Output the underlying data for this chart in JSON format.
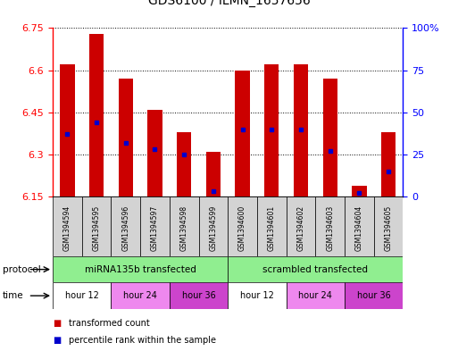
{
  "title": "GDS6100 / ILMN_1657656",
  "samples": [
    "GSM1394594",
    "GSM1394595",
    "GSM1394596",
    "GSM1394597",
    "GSM1394598",
    "GSM1394599",
    "GSM1394600",
    "GSM1394601",
    "GSM1394602",
    "GSM1394603",
    "GSM1394604",
    "GSM1394605"
  ],
  "transformed_count": [
    6.62,
    6.73,
    6.57,
    6.46,
    6.38,
    6.31,
    6.6,
    6.62,
    6.62,
    6.57,
    6.19,
    6.38
  ],
  "percentile_rank": [
    37,
    44,
    32,
    28,
    25,
    3,
    40,
    40,
    40,
    27,
    2,
    15
  ],
  "ylim_left": [
    6.15,
    6.75
  ],
  "ylim_right": [
    0,
    100
  ],
  "yticks_left": [
    6.15,
    6.3,
    6.45,
    6.6,
    6.75
  ],
  "yticks_right": [
    0,
    25,
    50,
    75,
    100
  ],
  "bar_color": "#cc0000",
  "dot_color": "#0000cc",
  "bar_bottom": 6.15,
  "protocol_groups": [
    {
      "label": "miRNA135b transfected",
      "start": 0,
      "end": 6,
      "color": "#90ee90"
    },
    {
      "label": "scrambled transfected",
      "start": 6,
      "end": 12,
      "color": "#90ee90"
    }
  ],
  "time_groups": [
    {
      "label": "hour 12",
      "start": 0,
      "end": 2,
      "color": "#ffffff"
    },
    {
      "label": "hour 24",
      "start": 2,
      "end": 4,
      "color": "#ee88ee"
    },
    {
      "label": "hour 36",
      "start": 4,
      "end": 6,
      "color": "#cc44cc"
    },
    {
      "label": "hour 12",
      "start": 6,
      "end": 8,
      "color": "#ffffff"
    },
    {
      "label": "hour 24",
      "start": 8,
      "end": 10,
      "color": "#ee88ee"
    },
    {
      "label": "hour 36",
      "start": 10,
      "end": 12,
      "color": "#cc44cc"
    }
  ],
  "legend_items": [
    {
      "label": "transformed count",
      "color": "#cc0000"
    },
    {
      "label": "percentile rank within the sample",
      "color": "#0000cc"
    }
  ],
  "plot_bg": "#ffffff",
  "sample_box_color": "#d3d3d3"
}
